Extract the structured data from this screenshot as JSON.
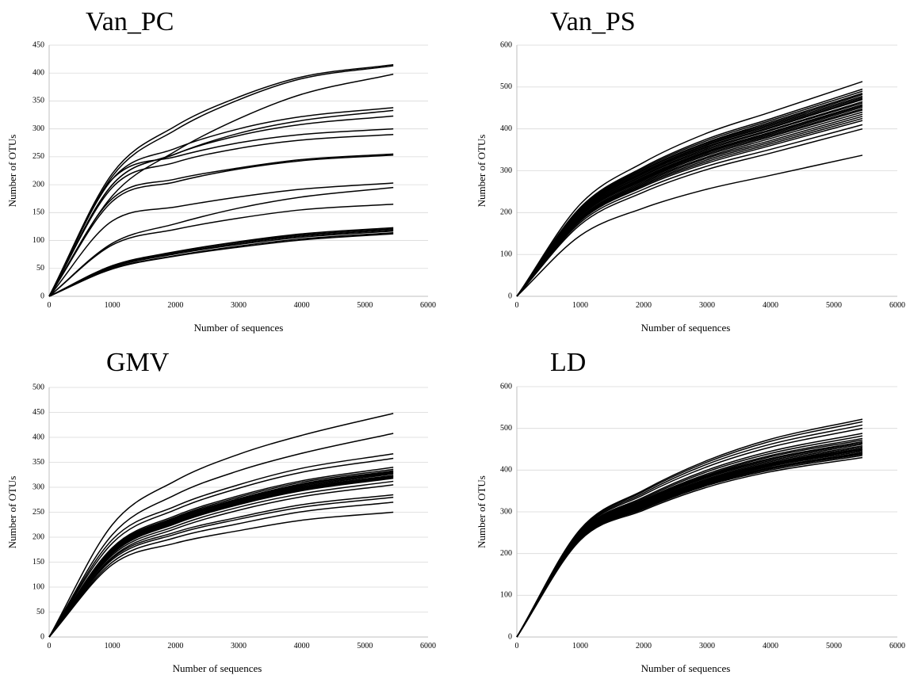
{
  "chart_data": [
    {
      "type": "line",
      "title": "Van_PC",
      "xlabel": "Number of sequences",
      "ylabel": "Number of OTUs",
      "xlim": [
        0,
        6000
      ],
      "ylim": [
        0,
        450
      ],
      "xticks": [
        "0",
        "1000",
        "2000",
        "3000",
        "4000",
        "5000",
        "6000"
      ],
      "yticks": [
        "0",
        "50",
        "100",
        "150",
        "200",
        "250",
        "300",
        "350",
        "400",
        "450"
      ],
      "grid": true,
      "x_max_sample": 5450,
      "curve_count": 19,
      "curve_endpoints": [
        415,
        413,
        398,
        338,
        333,
        323,
        300,
        290,
        255,
        253,
        203,
        195,
        165,
        123,
        121,
        119,
        117,
        114,
        112
      ],
      "x": [
        0,
        1000,
        2000,
        3000,
        4000,
        5450
      ],
      "series": [
        {
          "values": [
            0,
            220,
            305,
            357,
            393,
            415
          ]
        },
        {
          "values": [
            0,
            215,
            298,
            352,
            390,
            413
          ]
        },
        {
          "values": [
            0,
            180,
            260,
            318,
            362,
            398
          ]
        },
        {
          "values": [
            0,
            210,
            265,
            300,
            322,
            338
          ]
        },
        {
          "values": [
            0,
            200,
            255,
            292,
            315,
            333
          ]
        },
        {
          "values": [
            0,
            200,
            255,
            288,
            308,
            323
          ]
        },
        {
          "values": [
            0,
            210,
            250,
            275,
            290,
            300
          ]
        },
        {
          "values": [
            0,
            195,
            240,
            265,
            280,
            290
          ]
        },
        {
          "values": [
            0,
            175,
            210,
            230,
            245,
            255
          ]
        },
        {
          "values": [
            0,
            170,
            205,
            228,
            243,
            253
          ]
        },
        {
          "values": [
            0,
            135,
            160,
            178,
            192,
            203
          ]
        },
        {
          "values": [
            0,
            95,
            130,
            158,
            178,
            195
          ]
        },
        {
          "values": [
            0,
            92,
            120,
            140,
            155,
            165
          ]
        },
        {
          "values": [
            0,
            55,
            80,
            98,
            112,
            123
          ]
        },
        {
          "values": [
            0,
            54,
            79,
            97,
            110,
            121
          ]
        },
        {
          "values": [
            0,
            53,
            77,
            95,
            108,
            119
          ]
        },
        {
          "values": [
            0,
            52,
            76,
            93,
            106,
            117
          ]
        },
        {
          "values": [
            0,
            50,
            73,
            90,
            103,
            114
          ]
        },
        {
          "values": [
            0,
            49,
            72,
            88,
            101,
            112
          ]
        }
      ]
    },
    {
      "type": "line",
      "title": "Van_PS",
      "xlabel": "Number of sequences",
      "ylabel": "Number of OTUs",
      "xlim": [
        0,
        6000
      ],
      "ylim": [
        0,
        600
      ],
      "xticks": [
        "0",
        "1000",
        "2000",
        "3000",
        "4000",
        "5000",
        "6000"
      ],
      "yticks": [
        "0",
        "100",
        "200",
        "300",
        "400",
        "500",
        "600"
      ],
      "grid": true,
      "x_max_sample": 5450,
      "curve_count": 24,
      "curve_endpoints": [
        513,
        495,
        490,
        485,
        482,
        478,
        475,
        472,
        470,
        465,
        462,
        458,
        455,
        452,
        448,
        445,
        440,
        435,
        430,
        425,
        420,
        410,
        400,
        337
      ],
      "x": [
        0,
        1000,
        2000,
        3000,
        4000,
        5450
      ],
      "series": [
        {
          "values": [
            0,
            220,
            320,
            390,
            440,
            513
          ]
        },
        {
          "values": [
            0,
            212,
            309,
            376,
            424,
            495
          ]
        },
        {
          "values": [
            0,
            210,
            306,
            372,
            420,
            490
          ]
        },
        {
          "values": [
            0,
            208,
            303,
            368,
            416,
            485
          ]
        },
        {
          "values": [
            0,
            207,
            301,
            366,
            413,
            482
          ]
        },
        {
          "values": [
            0,
            205,
            298,
            363,
            410,
            478
          ]
        },
        {
          "values": [
            0,
            204,
            296,
            361,
            407,
            475
          ]
        },
        {
          "values": [
            0,
            202,
            294,
            358,
            404,
            472
          ]
        },
        {
          "values": [
            0,
            201,
            293,
            356,
            402,
            470
          ]
        },
        {
          "values": [
            0,
            199,
            290,
            353,
            398,
            465
          ]
        },
        {
          "values": [
            0,
            198,
            288,
            350,
            396,
            462
          ]
        },
        {
          "values": [
            0,
            196,
            285,
            347,
            392,
            458
          ]
        },
        {
          "values": [
            0,
            195,
            283,
            345,
            390,
            455
          ]
        },
        {
          "values": [
            0,
            194,
            281,
            343,
            387,
            452
          ]
        },
        {
          "values": [
            0,
            192,
            279,
            340,
            384,
            448
          ]
        },
        {
          "values": [
            0,
            191,
            277,
            337,
            381,
            445
          ]
        },
        {
          "values": [
            0,
            188,
            274,
            333,
            377,
            440
          ]
        },
        {
          "values": [
            0,
            186,
            271,
            330,
            372,
            435
          ]
        },
        {
          "values": [
            0,
            184,
            268,
            326,
            368,
            430
          ]
        },
        {
          "values": [
            0,
            182,
            265,
            322,
            364,
            425
          ]
        },
        {
          "values": [
            0,
            180,
            262,
            318,
            360,
            420
          ]
        },
        {
          "values": [
            0,
            176,
            256,
            311,
            351,
            410
          ]
        },
        {
          "values": [
            0,
            171,
            249,
            303,
            342,
            400
          ]
        },
        {
          "values": [
            0,
            145,
            211,
            256,
            289,
            337
          ]
        }
      ]
    },
    {
      "type": "line",
      "title": "GMV",
      "xlabel": "Number of sequences",
      "ylabel": "Number of OTUs",
      "xlim": [
        0,
        6000
      ],
      "ylim": [
        0,
        500
      ],
      "xticks": [
        "0",
        "1000",
        "2000",
        "3000",
        "4000",
        "5000",
        "6000"
      ],
      "yticks": [
        "0",
        "50",
        "100",
        "150",
        "200",
        "250",
        "300",
        "350",
        "400",
        "450",
        "500"
      ],
      "grid": true,
      "x_max_sample": 5450,
      "curve_count": 20,
      "curve_endpoints": [
        448,
        408,
        367,
        358,
        340,
        336,
        333,
        331,
        329,
        327,
        324,
        322,
        320,
        318,
        312,
        305,
        285,
        280,
        270,
        250
      ],
      "x": [
        0,
        1000,
        2000,
        3000,
        4000,
        5450
      ],
      "series": [
        {
          "values": [
            0,
            225,
            313,
            366,
            404,
            448
          ]
        },
        {
          "values": [
            0,
            205,
            285,
            333,
            368,
            408
          ]
        },
        {
          "values": [
            0,
            195,
            262,
            305,
            338,
            367
          ]
        },
        {
          "values": [
            0,
            188,
            255,
            298,
            330,
            358
          ]
        },
        {
          "values": [
            0,
            179,
            243,
            283,
            313,
            340
          ]
        },
        {
          "values": [
            0,
            177,
            240,
            280,
            310,
            336
          ]
        },
        {
          "values": [
            0,
            175,
            238,
            277,
            307,
            333
          ]
        },
        {
          "values": [
            0,
            174,
            236,
            275,
            305,
            331
          ]
        },
        {
          "values": [
            0,
            173,
            235,
            274,
            303,
            329
          ]
        },
        {
          "values": [
            0,
            172,
            233,
            272,
            301,
            327
          ]
        },
        {
          "values": [
            0,
            171,
            231,
            270,
            299,
            324
          ]
        },
        {
          "values": [
            0,
            170,
            230,
            268,
            297,
            322
          ]
        },
        {
          "values": [
            0,
            168,
            228,
            266,
            295,
            320
          ]
        },
        {
          "values": [
            0,
            167,
            227,
            265,
            293,
            318
          ]
        },
        {
          "values": [
            0,
            164,
            222,
            260,
            287,
            312
          ]
        },
        {
          "values": [
            0,
            160,
            217,
            254,
            281,
            305
          ]
        },
        {
          "values": [
            0,
            158,
            210,
            240,
            265,
            285
          ]
        },
        {
          "values": [
            0,
            155,
            206,
            236,
            260,
            280
          ]
        },
        {
          "values": [
            0,
            150,
            199,
            227,
            251,
            270
          ]
        },
        {
          "values": [
            0,
            145,
            188,
            213,
            234,
            250
          ]
        }
      ]
    },
    {
      "type": "line",
      "title": "LD",
      "xlabel": "Number of sequences",
      "ylabel": "Number of OTUs",
      "xlim": [
        0,
        6000
      ],
      "ylim": [
        0,
        600
      ],
      "xticks": [
        "0",
        "1000",
        "2000",
        "3000",
        "4000",
        "5000",
        "6000"
      ],
      "yticks": [
        "0",
        "100",
        "200",
        "300",
        "400",
        "500",
        "600"
      ],
      "grid": true,
      "x_max_sample": 5450,
      "curve_count": 22,
      "curve_endpoints": [
        522,
        516,
        508,
        500,
        488,
        482,
        476,
        472,
        468,
        465,
        462,
        458,
        455,
        452,
        450,
        448,
        445,
        442,
        440,
        438,
        435,
        430
      ],
      "x": [
        0,
        1000,
        2000,
        3000,
        4000,
        5450
      ],
      "series": [
        {
          "values": [
            0,
            258,
            352,
            423,
            474,
            522
          ]
        },
        {
          "values": [
            0,
            256,
            349,
            419,
            469,
            516
          ]
        },
        {
          "values": [
            0,
            254,
            345,
            414,
            462,
            508
          ]
        },
        {
          "values": [
            0,
            252,
            341,
            408,
            455,
            500
          ]
        },
        {
          "values": [
            0,
            250,
            335,
            400,
            445,
            488
          ]
        },
        {
          "values": [
            0,
            249,
            332,
            396,
            440,
            482
          ]
        },
        {
          "values": [
            0,
            248,
            329,
            391,
            435,
            476
          ]
        },
        {
          "values": [
            0,
            247,
            327,
            388,
            432,
            472
          ]
        },
        {
          "values": [
            0,
            246,
            325,
            386,
            428,
            468
          ]
        },
        {
          "values": [
            0,
            245,
            324,
            384,
            426,
            465
          ]
        },
        {
          "values": [
            0,
            244,
            322,
            382,
            423,
            462
          ]
        },
        {
          "values": [
            0,
            243,
            320,
            379,
            420,
            458
          ]
        },
        {
          "values": [
            0,
            242,
            318,
            377,
            417,
            455
          ]
        },
        {
          "values": [
            0,
            241,
            317,
            375,
            415,
            452
          ]
        },
        {
          "values": [
            0,
            240,
            316,
            374,
            413,
            450
          ]
        },
        {
          "values": [
            0,
            239,
            315,
            372,
            411,
            448
          ]
        },
        {
          "values": [
            0,
            238,
            313,
            370,
            409,
            445
          ]
        },
        {
          "values": [
            0,
            237,
            311,
            368,
            406,
            442
          ]
        },
        {
          "values": [
            0,
            236,
            310,
            366,
            404,
            440
          ]
        },
        {
          "values": [
            0,
            235,
            309,
            365,
            403,
            438
          ]
        },
        {
          "values": [
            0,
            234,
            307,
            363,
            400,
            435
          ]
        },
        {
          "values": [
            0,
            232,
            304,
            359,
            396,
            430
          ]
        }
      ]
    }
  ]
}
